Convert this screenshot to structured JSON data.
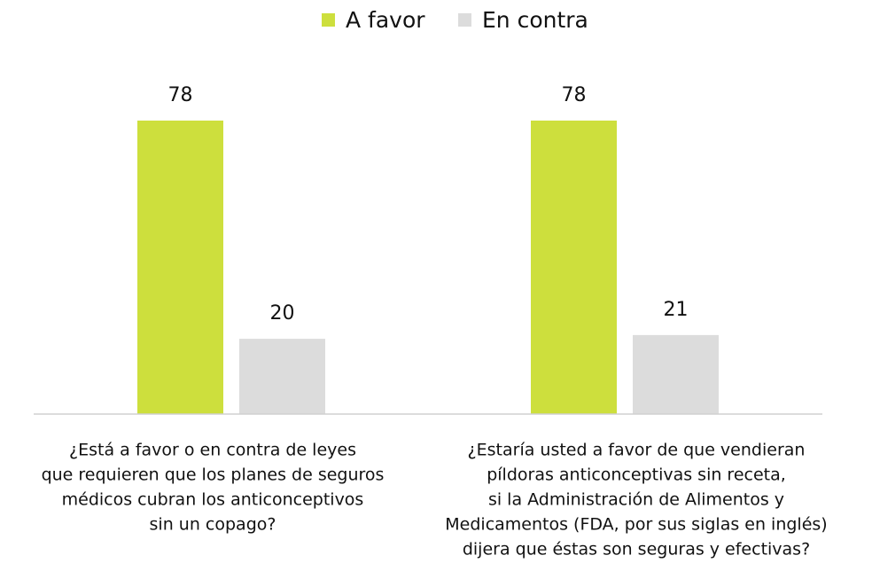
{
  "chart_data": {
    "type": "bar",
    "categories": [
      [
        "¿Está a favor o en contra de leyes",
        "que requieren que los planes de seguros",
        "médicos cubran los anticonceptivos",
        "sin un copago?"
      ],
      [
        "¿Estaría usted a favor de que vendieran",
        "píldoras anticonceptivas sin receta,",
        "si la Administración de Alimentos y",
        "Medicamentos (FDA, por sus siglas en inglés)",
        "dijera que éstas son seguras y efectivas?"
      ]
    ],
    "series": [
      {
        "name": "A favor",
        "color": "#cddf3d",
        "values": [
          78,
          78
        ]
      },
      {
        "name": "En contra",
        "color": "#dcdcdc",
        "values": [
          20,
          21
        ]
      }
    ]
  }
}
